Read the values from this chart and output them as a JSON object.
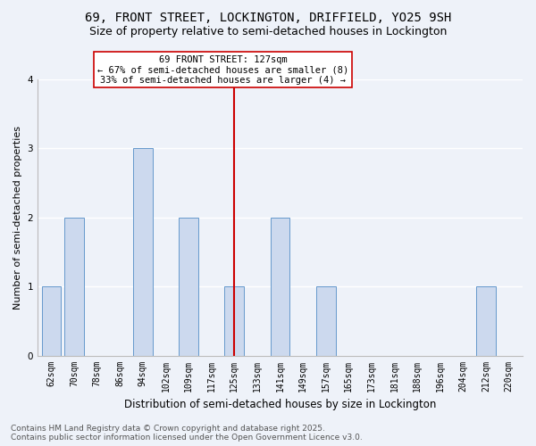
{
  "title": "69, FRONT STREET, LOCKINGTON, DRIFFIELD, YO25 9SH",
  "subtitle": "Size of property relative to semi-detached houses in Lockington",
  "xlabel": "Distribution of semi-detached houses by size in Lockington",
  "ylabel": "Number of semi-detached properties",
  "categories": [
    "62sqm",
    "70sqm",
    "78sqm",
    "86sqm",
    "94sqm",
    "102sqm",
    "109sqm",
    "117sqm",
    "125sqm",
    "133sqm",
    "141sqm",
    "149sqm",
    "157sqm",
    "165sqm",
    "173sqm",
    "181sqm",
    "188sqm",
    "196sqm",
    "204sqm",
    "212sqm",
    "220sqm"
  ],
  "values": [
    1,
    2,
    0,
    0,
    3,
    0,
    2,
    0,
    1,
    0,
    2,
    0,
    1,
    0,
    0,
    0,
    0,
    0,
    0,
    1,
    0
  ],
  "bar_color": "#ccd9ee",
  "bar_edge_color": "#6699cc",
  "subject_line_index": 8,
  "annotation_title": "69 FRONT STREET: 127sqm",
  "annotation_line1": "← 67% of semi-detached houses are smaller (8)",
  "annotation_line2": "33% of semi-detached houses are larger (4) →",
  "annotation_box_color": "#ffffff",
  "annotation_box_edge": "#cc0000",
  "vline_color": "#cc0000",
  "footer_line1": "Contains HM Land Registry data © Crown copyright and database right 2025.",
  "footer_line2": "Contains public sector information licensed under the Open Government Licence v3.0.",
  "ylim": [
    0,
    4
  ],
  "yticks": [
    0,
    1,
    2,
    3,
    4
  ],
  "background_color": "#eef2f9",
  "grid_color": "#ffffff",
  "title_fontsize": 10,
  "subtitle_fontsize": 9,
  "xlabel_fontsize": 8.5,
  "ylabel_fontsize": 8,
  "tick_fontsize": 7,
  "footer_fontsize": 6.5,
  "annotation_fontsize": 7.5
}
